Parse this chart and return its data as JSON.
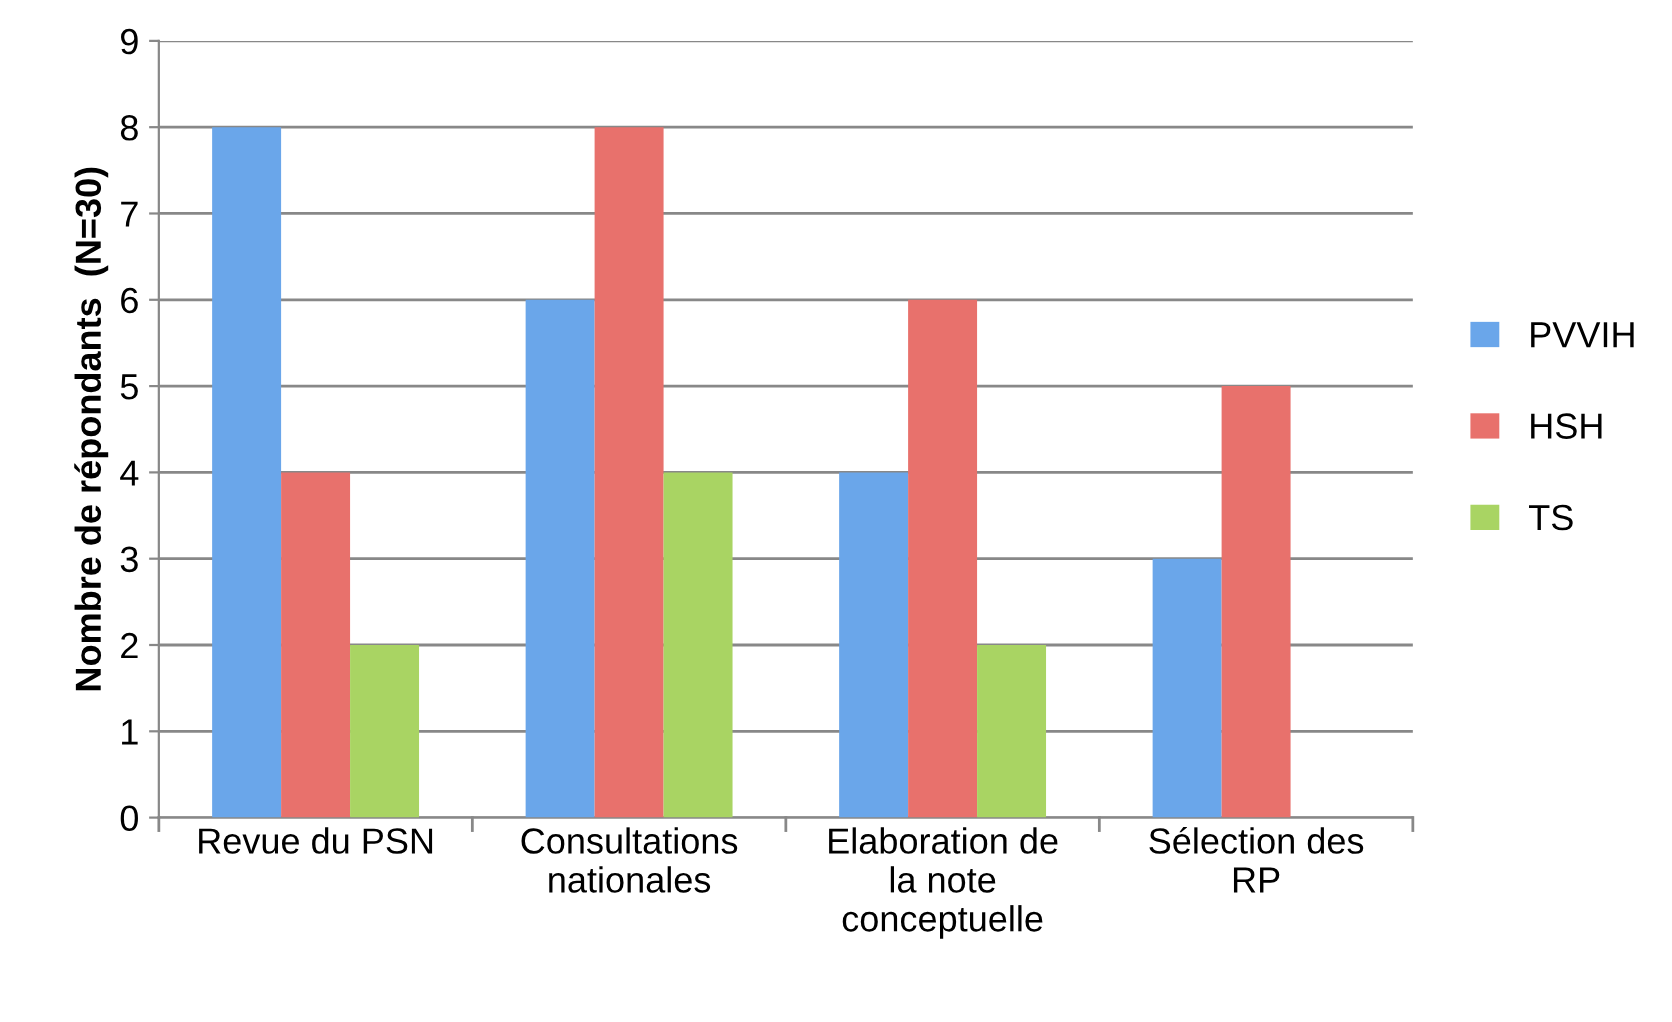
{
  "chart_data": {
    "type": "bar",
    "ylabel": "Nombre de répondants  (N=30)",
    "categories": [
      "Revue du PSN",
      "Consultations\nnationales",
      "Elaboration de\nla note\nconceptuelle",
      "Sélection des\nRP"
    ],
    "series": [
      {
        "name": "PVVIH",
        "color": "#6aa6ea",
        "values": [
          8,
          6,
          4,
          3
        ]
      },
      {
        "name": "HSH",
        "color": "#e8716c",
        "values": [
          4,
          8,
          6,
          5
        ]
      },
      {
        "name": "TS",
        "color": "#a9d463",
        "values": [
          2,
          4,
          2,
          0
        ]
      }
    ],
    "ylim": [
      0,
      9
    ],
    "yticks": [
      0,
      1,
      2,
      3,
      4,
      5,
      6,
      7,
      8,
      9
    ],
    "grid": "y",
    "legend": "right"
  }
}
